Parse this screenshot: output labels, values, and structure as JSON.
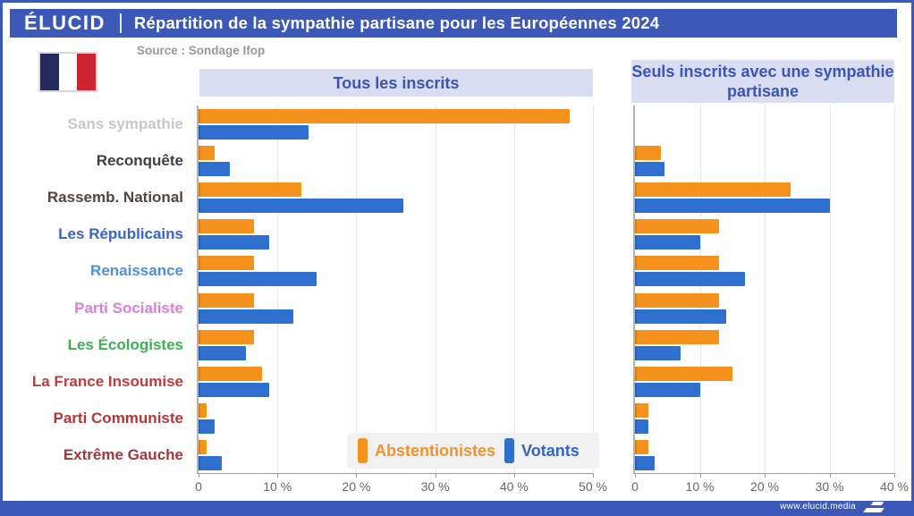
{
  "header": {
    "logo": "ÉLUCID",
    "title": "Répartition de la sympathie partisane pour les Européennes 2024"
  },
  "source": "Source : Sondage Ifop",
  "flag_icon": "french-flag",
  "footer": {
    "url": "www.elucid.media"
  },
  "colors": {
    "header_blue": "#3c59b8",
    "panel_title_bg": "#d9ddf2",
    "panel_title_text": "#3a55b8",
    "abstentionistes_orange": "#f5921e",
    "votants_blue": "#2f6fce",
    "flag_navy": "#252a5e",
    "flag_red": "#ce2431"
  },
  "legend": {
    "items": [
      {
        "label": "Abstentionistes",
        "color": "#f5921e",
        "text_color": "#f0932a"
      },
      {
        "label": "Votants",
        "color": "#2f6fce",
        "text_color": "#2f66c4"
      }
    ]
  },
  "parties": [
    {
      "label": "Sans sympathie",
      "color": "#c7c7c7"
    },
    {
      "label": "Reconquête",
      "color": "#3f3f3f"
    },
    {
      "label": "Rassemb. National",
      "color": "#54453e"
    },
    {
      "label": "Les Républicains",
      "color": "#3a63c8"
    },
    {
      "label": "Renaissance",
      "color": "#4c8fe2"
    },
    {
      "label": "Parti Socialiste",
      "color": "#dc7edc"
    },
    {
      "label": "Les Écologistes",
      "color": "#3faf4f"
    },
    {
      "label": "La France Insoumise",
      "color": "#c23a3c"
    },
    {
      "label": "Parti Communiste",
      "color": "#b43537"
    },
    {
      "label": "Extrême Gauche",
      "color": "#a33639"
    }
  ],
  "chart_data": [
    {
      "type": "bar",
      "orientation": "horizontal",
      "title": "Tous les inscrits",
      "categories": [
        "Sans sympathie",
        "Reconquête",
        "Rassemb. National",
        "Les Républicains",
        "Renaissance",
        "Parti Socialiste",
        "Les Écologistes",
        "La France Insoumise",
        "Parti Communiste",
        "Extrême Gauche"
      ],
      "series": [
        {
          "name": "Abstentionistes",
          "color": "#f5921e",
          "values": [
            47,
            2,
            13,
            7,
            7,
            7,
            7,
            8,
            1,
            1
          ]
        },
        {
          "name": "Votants",
          "color": "#2f6fce",
          "values": [
            14,
            4,
            26,
            9,
            15,
            12,
            6,
            9,
            2,
            3
          ]
        }
      ],
      "xlim": [
        0,
        50
      ],
      "ticks": [
        "0",
        "10 %",
        "20 %",
        "30 %",
        "40 %",
        "50 %"
      ],
      "unit": "%",
      "grid": true,
      "legend_position": "bottom-right-of-left-panel"
    },
    {
      "type": "bar",
      "orientation": "horizontal",
      "title": "Seuls inscrits avec une sympathie partisane",
      "categories": [
        "Sans sympathie",
        "Reconquête",
        "Rassemb. National",
        "Les Républicains",
        "Renaissance",
        "Parti Socialiste",
        "Les Écologistes",
        "La France Insoumise",
        "Parti Communiste",
        "Extrême Gauche"
      ],
      "series": [
        {
          "name": "Abstentionistes",
          "color": "#f5921e",
          "values": [
            0,
            4,
            24,
            13,
            13,
            13,
            13,
            15,
            2,
            2
          ]
        },
        {
          "name": "Votants",
          "color": "#2f6fce",
          "values": [
            0,
            4.5,
            30,
            10,
            17,
            14,
            7,
            10,
            2,
            3
          ]
        }
      ],
      "xlim": [
        0,
        40
      ],
      "ticks": [
        "0",
        "10 %",
        "20 %",
        "30 %",
        "40 %"
      ],
      "unit": "%",
      "grid": true
    }
  ]
}
